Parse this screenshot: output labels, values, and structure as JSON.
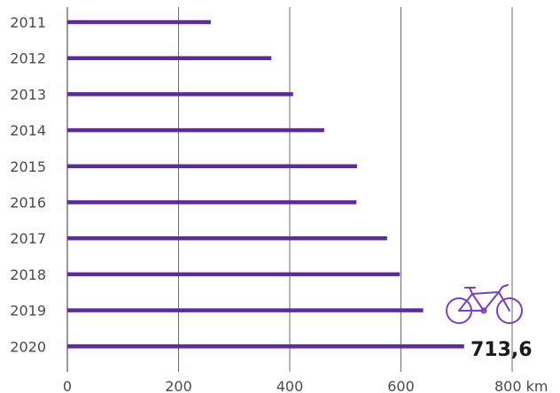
{
  "chart_data": {
    "type": "bar",
    "orientation": "horizontal",
    "categories": [
      "2011",
      "2012",
      "2013",
      "2014",
      "2015",
      "2016",
      "2017",
      "2018",
      "2019",
      "2020"
    ],
    "values": [
      258,
      367,
      406,
      462,
      521,
      520,
      575,
      598,
      640,
      713.6
    ],
    "xlim": [
      0,
      800
    ],
    "xticks": [
      0,
      200,
      400,
      600,
      800
    ],
    "xtick_labels": [
      "0",
      "200",
      "400",
      "600",
      "800 km"
    ],
    "grid": "vertical",
    "highlight": {
      "category": "2020",
      "label": "713,6",
      "icon": "bicycle-icon"
    },
    "colors": {
      "bar": "#5b2a9e",
      "grid": "#6e6e6e",
      "text": "#4a4a4a",
      "value_label": "#1a1a1a",
      "icon": "#7b3fbf"
    }
  }
}
